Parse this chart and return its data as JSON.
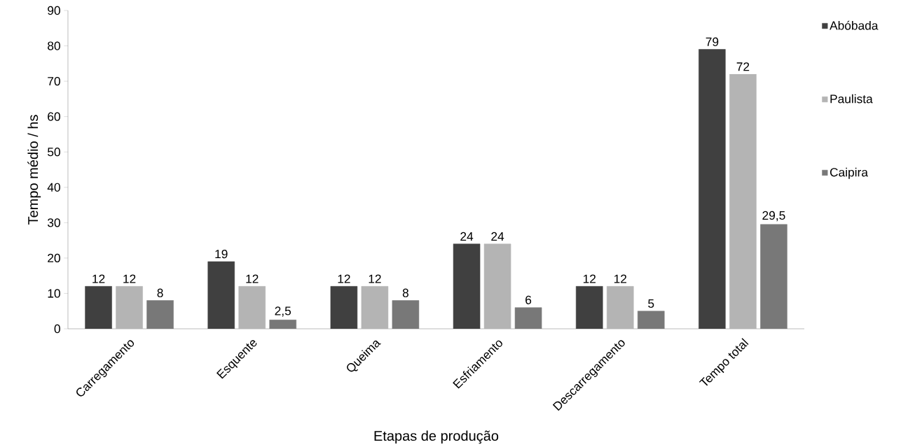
{
  "chart_data": {
    "type": "bar",
    "xlabel": "Etapas de produção",
    "ylabel": "Tempo médio / hs",
    "categories": [
      "Carregamento",
      "Esquente",
      "Queima",
      "Esfriamento",
      "Descarregamento",
      "Tempo total"
    ],
    "series": [
      {
        "name": "Abóbada",
        "color": "#404040",
        "values": [
          12,
          19,
          12,
          24,
          12,
          79
        ],
        "value_labels": [
          "12",
          "19",
          "12",
          "24",
          "12",
          "79"
        ]
      },
      {
        "name": "Paulista",
        "color": "#b4b4b4",
        "values": [
          12,
          12,
          12,
          24,
          12,
          72
        ],
        "value_labels": [
          "12",
          "12",
          "12",
          "24",
          "12",
          "72"
        ]
      },
      {
        "name": "Caipira",
        "color": "#787878",
        "values": [
          8,
          2.5,
          8,
          6,
          5,
          29.5
        ],
        "value_labels": [
          "8",
          "2,5",
          "8",
          "6",
          "5",
          "29,5"
        ]
      }
    ],
    "ylim": [
      0,
      90
    ],
    "yticks": [
      0,
      10,
      20,
      30,
      40,
      50,
      60,
      70,
      80,
      90
    ],
    "grid": false,
    "legend": "right"
  }
}
